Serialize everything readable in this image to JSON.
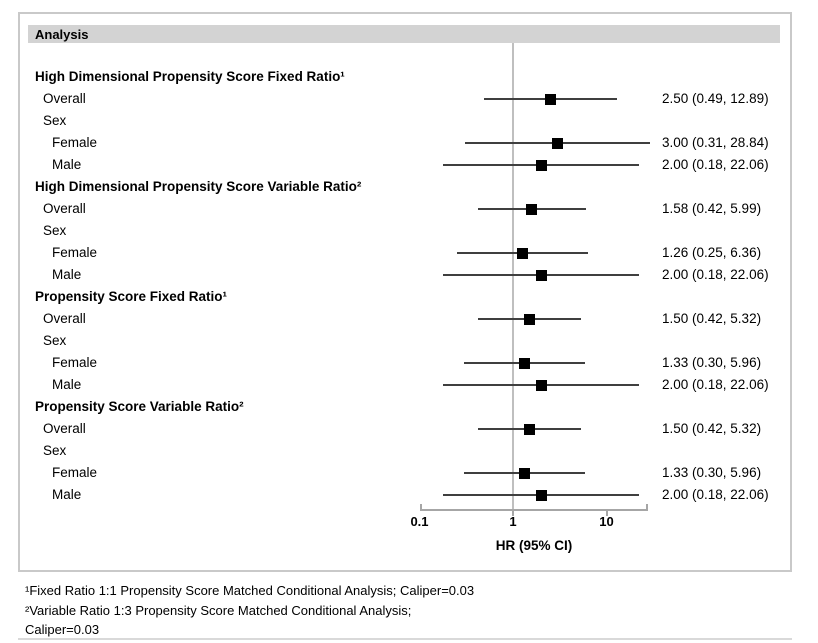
{
  "header": {
    "title": "Analysis"
  },
  "colors": {
    "marker": "#000000",
    "ci_line": "#3f3f3f",
    "reference_line": "#bfbfbf",
    "axis": "#a6a6a6",
    "header_bg": "#d3d3d3",
    "box_border": "#c9c9c9"
  },
  "chart_data": {
    "type": "forest",
    "title": "Analysis",
    "xlabel": "HR (95% CI)",
    "x_scale": "log",
    "xlim": [
      0.1,
      28
    ],
    "reference_value": 1,
    "x_ticks": [
      {
        "v": 0.1,
        "label": "0.1"
      },
      {
        "v": 1,
        "label": "1"
      },
      {
        "v": 10,
        "label": "10"
      }
    ],
    "rows": [
      {
        "label": "High Dimensional Propensity Score Fixed Ratio¹",
        "level": 0,
        "group": true
      },
      {
        "label": "Overall",
        "level": 1,
        "hr": 2.5,
        "lo": 0.49,
        "hi": 12.89,
        "text": "2.50 (0.49, 12.89)"
      },
      {
        "label": "Sex",
        "level": 1
      },
      {
        "label": "Female",
        "level": 2,
        "hr": 3.0,
        "lo": 0.31,
        "hi": 28.84,
        "text": "3.00 (0.31, 28.84)"
      },
      {
        "label": "Male",
        "level": 2,
        "hr": 2.0,
        "lo": 0.18,
        "hi": 22.06,
        "text": "2.00 (0.18, 22.06)"
      },
      {
        "label": "High Dimensional Propensity Score Variable Ratio²",
        "level": 0,
        "group": true
      },
      {
        "label": "Overall",
        "level": 1,
        "hr": 1.58,
        "lo": 0.42,
        "hi": 5.99,
        "text": "1.58 (0.42, 5.99)"
      },
      {
        "label": "Sex",
        "level": 1
      },
      {
        "label": "Female",
        "level": 2,
        "hr": 1.26,
        "lo": 0.25,
        "hi": 6.36,
        "text": "1.26 (0.25, 6.36)"
      },
      {
        "label": "Male",
        "level": 2,
        "hr": 2.0,
        "lo": 0.18,
        "hi": 22.06,
        "text": "2.00 (0.18, 22.06)"
      },
      {
        "label": "Propensity Score Fixed Ratio¹",
        "level": 0,
        "group": true
      },
      {
        "label": "Overall",
        "level": 1,
        "hr": 1.5,
        "lo": 0.42,
        "hi": 5.32,
        "text": "1.50 (0.42, 5.32)"
      },
      {
        "label": "Sex",
        "level": 1
      },
      {
        "label": "Female",
        "level": 2,
        "hr": 1.33,
        "lo": 0.3,
        "hi": 5.96,
        "text": "1.33 (0.30, 5.96)"
      },
      {
        "label": "Male",
        "level": 2,
        "hr": 2.0,
        "lo": 0.18,
        "hi": 22.06,
        "text": "2.00 (0.18, 22.06)"
      },
      {
        "label": "Propensity Score Variable Ratio²",
        "level": 0,
        "group": true
      },
      {
        "label": "Overall",
        "level": 1,
        "hr": 1.5,
        "lo": 0.42,
        "hi": 5.32,
        "text": "1.50 (0.42, 5.32)"
      },
      {
        "label": "Sex",
        "level": 1
      },
      {
        "label": "Female",
        "level": 2,
        "hr": 1.33,
        "lo": 0.3,
        "hi": 5.96,
        "text": "1.33 (0.30, 5.96)"
      },
      {
        "label": "Male",
        "level": 2,
        "hr": 2.0,
        "lo": 0.18,
        "hi": 22.06,
        "text": "2.00 (0.18, 22.06)"
      }
    ],
    "legend": null,
    "grid": false
  },
  "footnotes": [
    "¹Fixed Ratio 1:1 Propensity Score Matched Conditional Analysis; Caliper=0.03",
    "²Variable Ratio 1:3 Propensity Score Matched Conditional Analysis;",
    "Caliper=0.03"
  ]
}
